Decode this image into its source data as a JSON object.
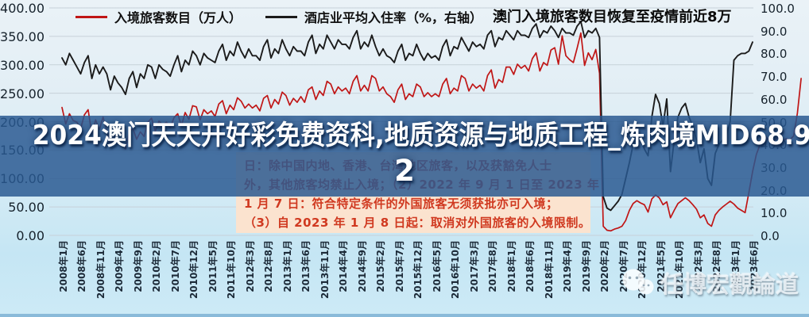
{
  "title": "澳门入境旅客数目恢复至疫情前近8万",
  "overlay_banner": {
    "full_text": "2024澳门天天开好彩免费资科,地质资源与地质工程_炼肉境MID68.92",
    "line1": "2024澳门天天开好彩免费资科,地质资源与地质工程_炼肉境MID68.9",
    "line2": "2"
  },
  "annotation": {
    "lines": [
      "日：除中国内地、香港、台湾地区旅客，以及获豁免人士",
      "外，其他旅客均禁止入境；（2）2022 年 9 月 1 日至 2023 年",
      "1 月 7 日：符合特定条件的外国旅客无须获批亦可入境；",
      "（3）自 2023 年 1 月 8 日起：取消对外国旅客的入境限制。"
    ]
  },
  "watermark": {
    "text": "任博宏觀論道",
    "icon": "wechat-icon"
  },
  "chart_data": {
    "type": "line",
    "title": "澳门入境旅客数目恢复至疫情前近8万",
    "grid": true,
    "legend_position": "top",
    "x_axis": {
      "start": "2008-01",
      "interval": "monthly",
      "tick_labels": [
        "2008年1月",
        "2008年6月",
        "2008年11月",
        "2009年4月",
        "2009年9月",
        "2010年2月",
        "2010年7月",
        "2010年12月",
        "2011年5月",
        "2011年10月",
        "2012年3月",
        "2012年8月",
        "2013年1月",
        "2013年6月",
        "2013年11月",
        "2014年4月",
        "2014年9月",
        "2015年2月",
        "2015年7月",
        "2015年12月",
        "2016年5月",
        "2016年10月",
        "2017年3月",
        "2017年8月",
        "2018年1月",
        "2018年6月",
        "2018年11月",
        "2019年4月",
        "2019年9月",
        "2020年2月",
        "2020年7月",
        "2020年12月",
        "2021年5月",
        "2021年10月",
        "2022年3月",
        "2022年8月",
        "2023年1月",
        "2023年6月"
      ]
    },
    "left_axis": {
      "min": 0,
      "max": 400,
      "ticks": [
        "400.00",
        "350.00",
        "300.00",
        "250.00",
        "200.00",
        "150.00",
        "100.00",
        "50.00",
        "0.00"
      ]
    },
    "right_axis": {
      "min": 0,
      "max": 100,
      "ticks": [
        "100.0",
        "90.0",
        "80.0",
        "70.0",
        "60.0",
        "50.0",
        "40.0",
        "30.0",
        "20.0",
        "10.0",
        "0.0"
      ]
    },
    "series": [
      {
        "name": "入境旅客数目（万人）",
        "axis": "left",
        "color": "#c01616",
        "values": [
          225,
          196,
          214,
          202,
          199,
          188,
          212,
          221,
          178,
          203,
          186,
          208,
          184,
          158,
          176,
          168,
          163,
          152,
          181,
          188,
          169,
          182,
          174,
          199,
          206,
          183,
          201,
          194,
          199,
          189,
          207,
          214,
          193,
          216,
          204,
          228,
          226,
          203,
          221,
          214,
          219,
          209,
          231,
          237,
          214,
          229,
          221,
          242,
          236,
          224,
          231,
          224,
          229,
          219,
          241,
          246,
          224,
          239,
          231,
          252,
          246,
          229,
          241,
          234,
          244,
          234,
          256,
          261,
          239,
          254,
          246,
          271,
          266,
          249,
          261,
          254,
          259,
          249,
          271,
          281,
          254,
          264,
          254,
          281,
          276,
          254,
          261,
          249,
          244,
          234,
          256,
          266,
          239,
          249,
          244,
          266,
          261,
          244,
          251,
          244,
          249,
          244,
          266,
          276,
          249,
          259,
          254,
          281,
          276,
          254,
          266,
          259,
          264,
          254,
          281,
          291,
          259,
          274,
          269,
          296,
          296,
          283,
          301,
          294,
          299,
          289,
          311,
          321,
          289,
          304,
          299,
          326,
          330,
          301,
          351,
          316,
          309,
          304,
          329,
          356,
          299,
          321,
          309,
          327,
          285,
          16,
          9,
          8,
          11,
          13,
          16,
          26,
          44,
          56,
          61,
          57,
          54,
          41,
          64,
          71,
          66,
          54,
          59,
          31,
          44,
          56,
          61,
          66,
          61,
          54,
          46,
          31,
          36,
          21,
          16,
          36,
          44,
          50,
          55,
          60,
          55,
          48,
          44,
          40,
          75,
          112,
          142,
          160,
          177,
          170,
          163,
          168,
          172,
          165,
          170,
          168,
          175,
          215,
          276
        ]
      },
      {
        "name": "酒店业平均入住率（%，右轴）",
        "axis": "right",
        "color": "#1b1b1b",
        "values": [
          78,
          75,
          80,
          77,
          74,
          71,
          76,
          79,
          69,
          75,
          71,
          74,
          71,
          64,
          70,
          67,
          65,
          62,
          69,
          72,
          65,
          71,
          69,
          75,
          74,
          69,
          75,
          73,
          72,
          70,
          75,
          79,
          72,
          77,
          75,
          81,
          79,
          75,
          80,
          78,
          77,
          76,
          81,
          84,
          77,
          81,
          79,
          85,
          81,
          78,
          82,
          79,
          79,
          77,
          83,
          86,
          78,
          82,
          80,
          86,
          82,
          79,
          83,
          81,
          81,
          79,
          85,
          88,
          80,
          84,
          82,
          88,
          85,
          82,
          86,
          84,
          84,
          82,
          87,
          90,
          82,
          85,
          83,
          88,
          83,
          79,
          82,
          79,
          78,
          76,
          81,
          84,
          77,
          80,
          79,
          84,
          80,
          77,
          80,
          78,
          79,
          77,
          83,
          86,
          79,
          83,
          82,
          87,
          84,
          81,
          85,
          83,
          84,
          82,
          88,
          90,
          83,
          87,
          86,
          90,
          88,
          86,
          90,
          88,
          88,
          87,
          91,
          93,
          87,
          90,
          89,
          92,
          90,
          87,
          91,
          89,
          89,
          88,
          92,
          94,
          87,
          90,
          89,
          91,
          87,
          17,
          12,
          11,
          13,
          15,
          18,
          25,
          32,
          40,
          45,
          42,
          38,
          35,
          52,
          62,
          58,
          48,
          60,
          28,
          42,
          52,
          56,
          58,
          52,
          48,
          42,
          32,
          38,
          25,
          22,
          36,
          40,
          42,
          44,
          50,
          77,
          79,
          80,
          80,
          81,
          85
        ]
      }
    ]
  }
}
